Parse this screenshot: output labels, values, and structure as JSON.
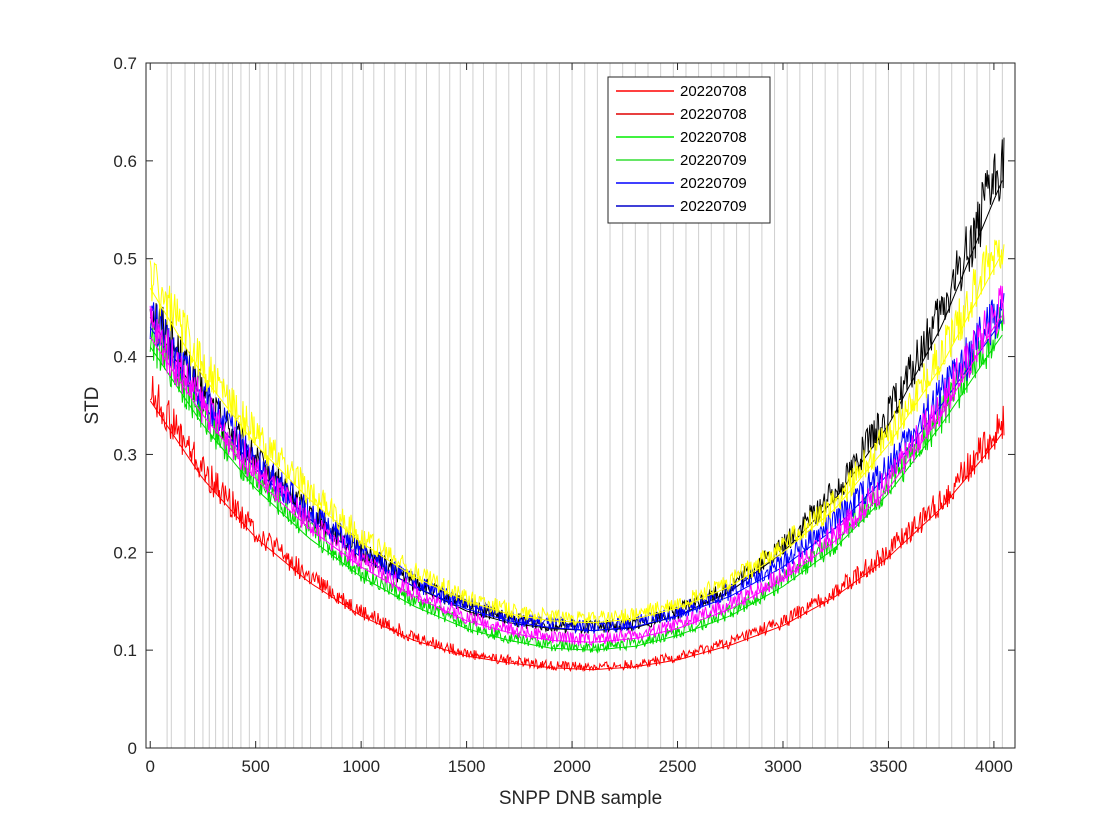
{
  "chart_data": {
    "type": "line",
    "title": "",
    "xlabel": "SNPP DNB sample",
    "ylabel": "STD",
    "xlim": [
      -20,
      4100
    ],
    "ylim": [
      0,
      0.7
    ],
    "xticks": [
      0,
      500,
      1000,
      1500,
      2000,
      2500,
      3000,
      3500,
      4000
    ],
    "yticks": [
      0,
      0.1,
      0.2,
      0.3,
      0.4,
      0.5,
      0.6,
      0.7
    ],
    "xtick_labels": [
      "0",
      "500",
      "1000",
      "1500",
      "2000",
      "2500",
      "3000",
      "3500",
      "4000"
    ],
    "ytick_labels": [
      "0",
      "0.1",
      "0.2",
      "0.3",
      "0.4",
      "0.5",
      "0.6",
      "0.7"
    ],
    "grid": false,
    "legend_position": "top-center",
    "legend": [
      {
        "label": "20220708",
        "color": "#ff0000"
      },
      {
        "label": "20220708",
        "color": "#e00000"
      },
      {
        "label": "20220708",
        "color": "#00ee00"
      },
      {
        "label": "20220709",
        "color": "#33dd33"
      },
      {
        "label": "20220709",
        "color": "#0000ff"
      },
      {
        "label": "20220709",
        "color": "#0000cc"
      }
    ],
    "vertical_lines_x": [
      80,
      100,
      165,
      210,
      250,
      280,
      310,
      345,
      370,
      390,
      430,
      470,
      520,
      560,
      600,
      640,
      680,
      720,
      760,
      810,
      860,
      910,
      960,
      1010,
      1060,
      1110,
      1160,
      1210,
      1260,
      1310,
      1370,
      1420,
      1470,
      1530,
      1580,
      1640,
      1700,
      1760,
      1820,
      1880,
      1940,
      2000,
      2060,
      2120,
      2180,
      2240,
      2300,
      2360,
      2420,
      2480,
      2540,
      2600,
      2660,
      2720,
      2780,
      2840,
      2900,
      2960,
      3020,
      3080,
      3140,
      3200,
      3260,
      3320,
      3380,
      3440,
      3500,
      3560,
      3620,
      3680,
      3740,
      3800,
      3860,
      3920,
      3980,
      4040
    ],
    "series": [
      {
        "color": "#000000",
        "x": [
          0,
          250,
          500,
          750,
          1000,
          1250,
          1500,
          1700,
          1900,
          2100,
          2300,
          2500,
          2750,
          3000,
          3250,
          3500,
          3750,
          4000,
          4050
        ],
        "y": [
          0.44,
          0.35,
          0.285,
          0.235,
          0.195,
          0.165,
          0.14,
          0.128,
          0.122,
          0.12,
          0.123,
          0.135,
          0.16,
          0.2,
          0.255,
          0.33,
          0.43,
          0.56,
          0.585
        ]
      },
      {
        "color": "#ff0000",
        "x": [
          0,
          250,
          500,
          750,
          1000,
          1250,
          1500,
          1700,
          1900,
          2100,
          2300,
          2500,
          2750,
          3000,
          3250,
          3500,
          3750,
          4000,
          4050
        ],
        "y": [
          0.355,
          0.275,
          0.215,
          0.17,
          0.135,
          0.11,
          0.094,
          0.087,
          0.082,
          0.08,
          0.083,
          0.09,
          0.105,
          0.125,
          0.155,
          0.195,
          0.245,
          0.31,
          0.325
        ]
      },
      {
        "color": "#00dd00",
        "x": [
          0,
          250,
          500,
          750,
          1000,
          1250,
          1500,
          1700,
          1900,
          2100,
          2300,
          2500,
          2750,
          3000,
          3250,
          3500,
          3750,
          4000,
          4050
        ],
        "y": [
          0.41,
          0.33,
          0.265,
          0.215,
          0.175,
          0.145,
          0.122,
          0.11,
          0.102,
          0.1,
          0.104,
          0.115,
          0.135,
          0.165,
          0.205,
          0.26,
          0.33,
          0.41,
          0.425
        ]
      },
      {
        "color": "#0000ff",
        "x": [
          0,
          250,
          500,
          750,
          1000,
          1250,
          1500,
          1700,
          1900,
          2100,
          2300,
          2500,
          2750,
          3000,
          3250,
          3500,
          3750,
          4000,
          4050
        ],
        "y": [
          0.43,
          0.35,
          0.285,
          0.235,
          0.195,
          0.165,
          0.142,
          0.13,
          0.123,
          0.12,
          0.124,
          0.135,
          0.155,
          0.185,
          0.225,
          0.28,
          0.35,
          0.425,
          0.44
        ]
      },
      {
        "color": "#ff00ff",
        "x": [
          0,
          250,
          500,
          750,
          1000,
          1250,
          1500,
          1700,
          1900,
          2100,
          2300,
          2500,
          2750,
          3000,
          3250,
          3500,
          3750,
          4000,
          4050
        ],
        "y": [
          0.42,
          0.34,
          0.275,
          0.225,
          0.185,
          0.155,
          0.13,
          0.118,
          0.11,
          0.108,
          0.112,
          0.122,
          0.142,
          0.172,
          0.212,
          0.265,
          0.34,
          0.43,
          0.445
        ]
      },
      {
        "color": "#ffff00",
        "x": [
          0,
          250,
          500,
          750,
          1000,
          1250,
          1500,
          1700,
          1900,
          2100,
          2300,
          2500,
          2750,
          3000,
          3250,
          3500,
          3750,
          4000,
          4050
        ],
        "y": [
          0.47,
          0.38,
          0.31,
          0.255,
          0.21,
          0.175,
          0.15,
          0.137,
          0.13,
          0.128,
          0.132,
          0.143,
          0.165,
          0.2,
          0.245,
          0.31,
          0.39,
          0.49,
          0.51
        ]
      }
    ]
  }
}
